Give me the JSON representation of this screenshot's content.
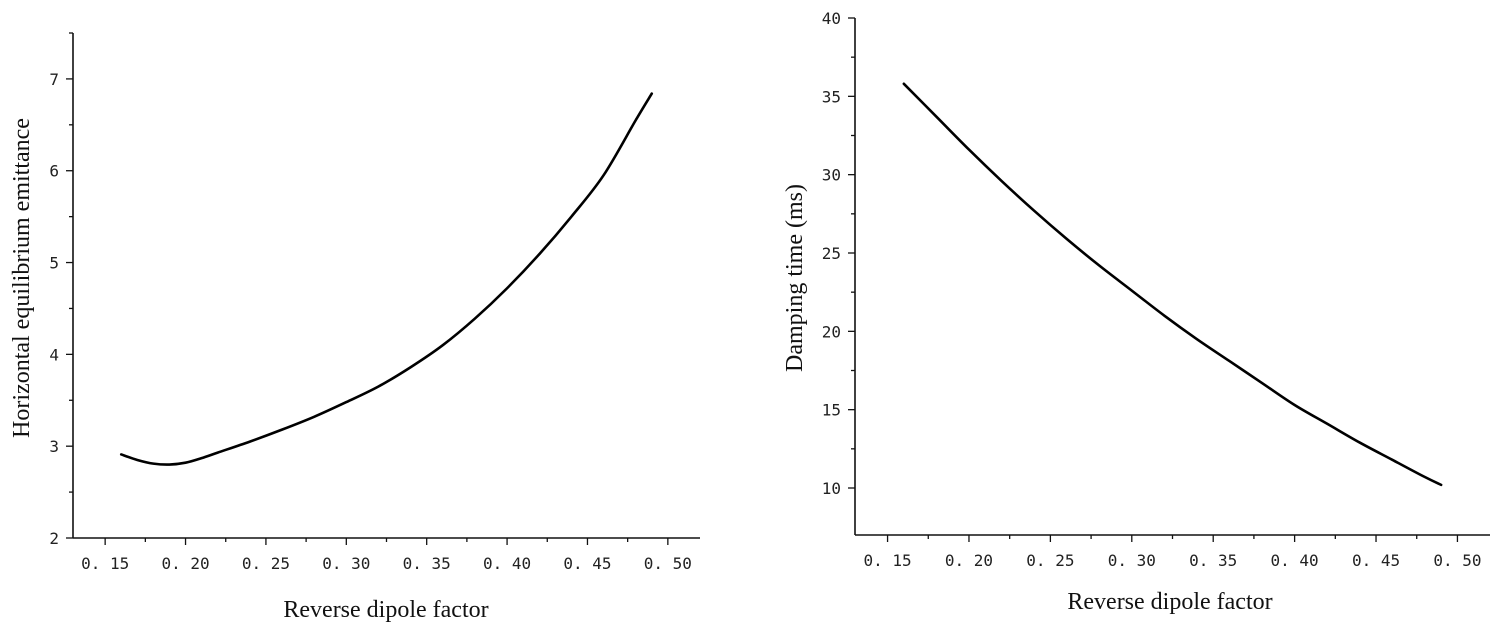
{
  "chart_data": [
    {
      "type": "line",
      "xlabel": "Reverse dipole factor",
      "ylabel": "Horizontal equilibrium emittance",
      "xlim": [
        0.13,
        0.52
      ],
      "ylim": [
        2,
        7.5
      ],
      "x_ticks": [
        "0. 15",
        "0. 20",
        "0. 25",
        "0. 30",
        "0. 35",
        "0. 40",
        "0. 45",
        "0. 50"
      ],
      "y_ticks": [
        "2",
        "3",
        "4",
        "5",
        "6",
        "7"
      ],
      "grid": false,
      "series": [
        {
          "x": [
            0.16,
            0.17,
            0.18,
            0.19,
            0.2,
            0.21,
            0.22,
            0.24,
            0.26,
            0.28,
            0.3,
            0.32,
            0.34,
            0.36,
            0.38,
            0.4,
            0.42,
            0.44,
            0.46,
            0.48,
            0.49
          ],
          "y": [
            2.91,
            2.85,
            2.81,
            2.8,
            2.82,
            2.87,
            2.93,
            3.05,
            3.18,
            3.32,
            3.48,
            3.65,
            3.86,
            4.1,
            4.39,
            4.72,
            5.09,
            5.5,
            5.95,
            6.55,
            6.84
          ]
        }
      ]
    },
    {
      "type": "line",
      "xlabel": "Reverse dipole factor",
      "ylabel": "Damping time (ms)",
      "xlim": [
        0.13,
        0.52
      ],
      "ylim": [
        7,
        40
      ],
      "x_ticks": [
        "0. 15",
        "0. 20",
        "0. 25",
        "0. 30",
        "0. 35",
        "0. 40",
        "0. 45",
        "0. 50"
      ],
      "y_ticks": [
        "10",
        "15",
        "20",
        "25",
        "30",
        "35",
        "40"
      ],
      "grid": false,
      "series": [
        {
          "x": [
            0.16,
            0.18,
            0.2,
            0.22,
            0.24,
            0.26,
            0.28,
            0.3,
            0.32,
            0.34,
            0.36,
            0.38,
            0.4,
            0.42,
            0.44,
            0.46,
            0.48,
            0.49
          ],
          "y": [
            35.8,
            33.7,
            31.6,
            29.6,
            27.7,
            25.9,
            24.2,
            22.6,
            21.0,
            19.5,
            18.1,
            16.7,
            15.3,
            14.1,
            12.9,
            11.8,
            10.7,
            10.2
          ]
        }
      ]
    }
  ]
}
